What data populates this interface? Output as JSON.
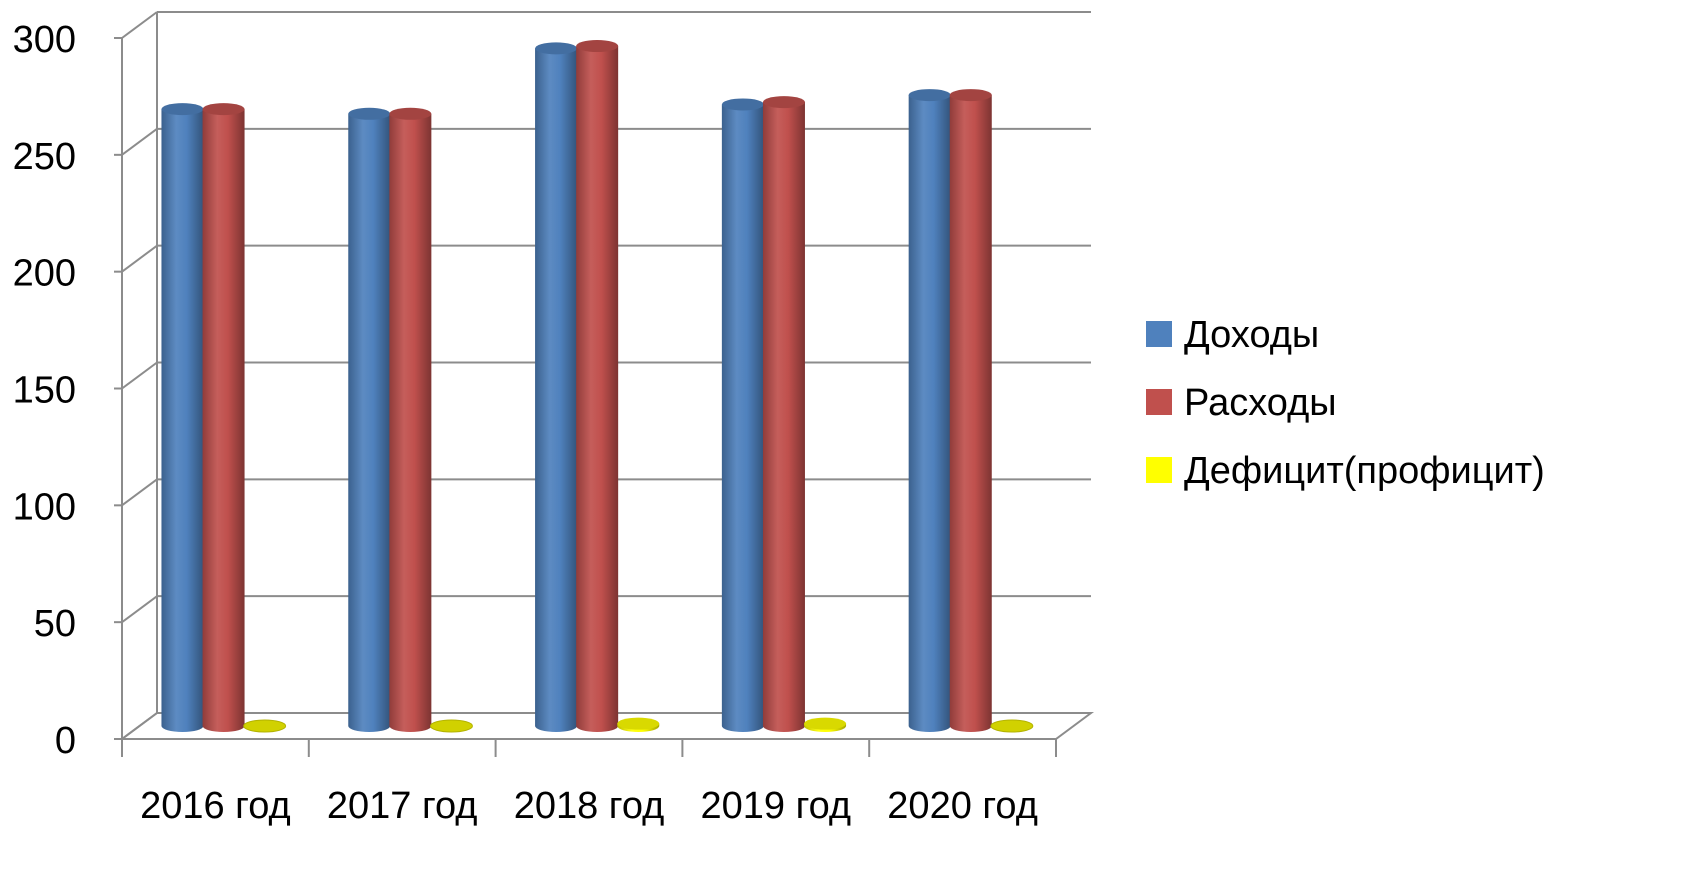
{
  "chart_data": {
    "type": "bar",
    "style": "3d-cylinder",
    "categories": [
      "2016 год",
      "2017 год",
      "2018 год",
      "2019 год",
      "2020 год"
    ],
    "series": [
      {
        "name": "Доходы",
        "color": "#4f81bd",
        "values": [
          264,
          262,
          290,
          266,
          270
        ]
      },
      {
        "name": "Расходы",
        "color": "#c0504d",
        "values": [
          264,
          262,
          291,
          267,
          270
        ]
      },
      {
        "name": "Дефицит(профицит)",
        "color": "#ffff00",
        "values": [
          0,
          0,
          1,
          1,
          0
        ]
      }
    ],
    "ylim": [
      0,
      300
    ],
    "yticks": [
      "0",
      "50",
      "100",
      "150",
      "200",
      "250",
      "300"
    ],
    "grid": true,
    "legend_position": "right"
  }
}
